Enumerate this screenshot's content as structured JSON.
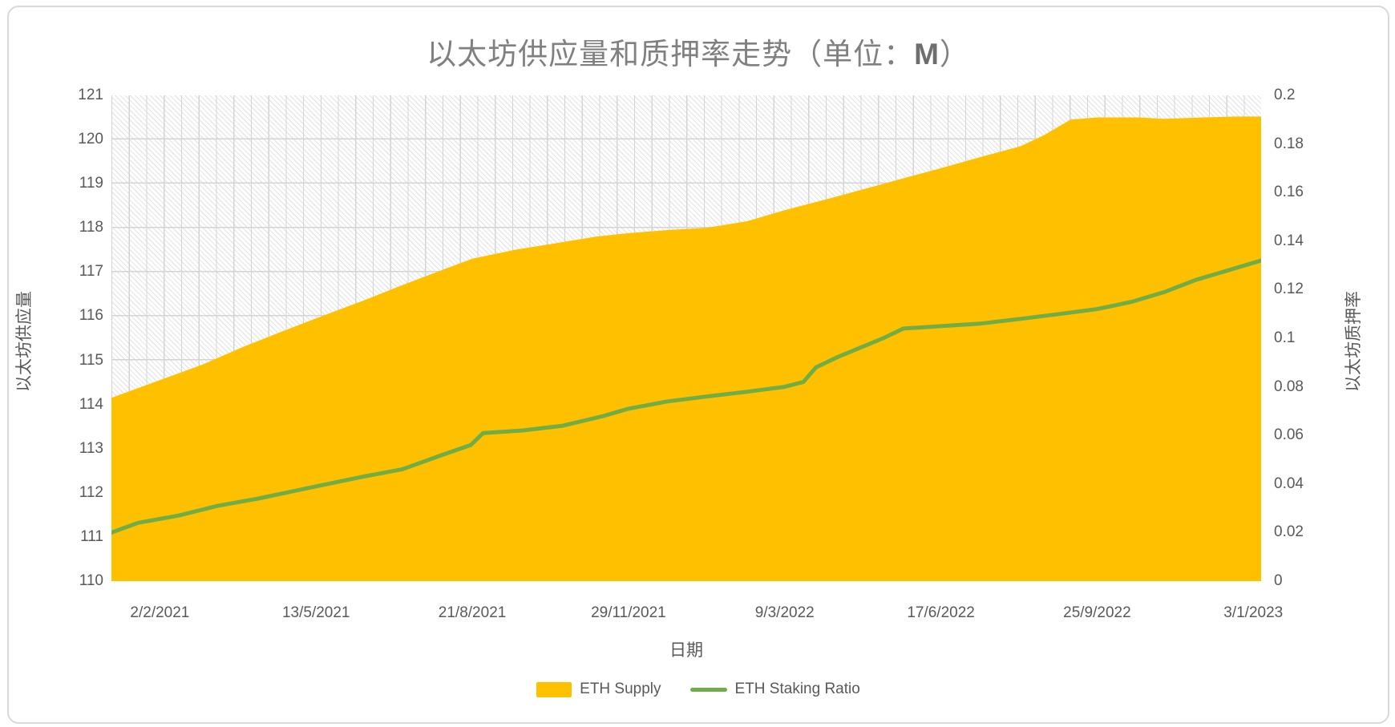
{
  "title": {
    "main": "以太坊供应量和质押率走势（单位：",
    "unit": "M",
    "suffix": "）"
  },
  "chart_data": {
    "type": "area+line combo",
    "title": "以太坊供应量和质押率走势（单位：M）",
    "plot_background": "light-gray diagonal hatch pattern with grid cells",
    "x_axis": {
      "title": "日期",
      "labels": [
        "2/2/2021",
        "13/5/2021",
        "21/8/2021",
        "29/11/2021",
        "9/3/2022",
        "17/6/2022",
        "25/9/2022",
        "3/1/2023"
      ],
      "label_day_offsets": [
        0,
        100,
        200,
        300,
        400,
        500,
        600,
        700
      ],
      "day_range": [
        -31,
        705
      ]
    },
    "y_left": {
      "title": "以太坊供应量",
      "min": 110,
      "max": 121,
      "tick_step": 1,
      "ticks": [
        "110",
        "111",
        "112",
        "113",
        "114",
        "115",
        "116",
        "117",
        "118",
        "119",
        "120",
        "121"
      ]
    },
    "y_right": {
      "title": "以太坊质押率",
      "min": 0,
      "max": 0.2,
      "tick_step": 0.02,
      "ticks": [
        "0",
        "0.02",
        "0.04",
        "0.06",
        "0.08",
        "0.1",
        "0.12",
        "0.14",
        "0.16",
        "0.18",
        "0.2"
      ]
    },
    "series": [
      {
        "name": "ETH Supply",
        "type": "area",
        "axis": "left",
        "color": "#FFC000",
        "points": [
          [
            -31,
            114.15
          ],
          [
            0,
            114.55
          ],
          [
            27,
            114.9
          ],
          [
            53,
            115.3
          ],
          [
            78,
            115.65
          ],
          [
            100,
            115.95
          ],
          [
            130,
            116.35
          ],
          [
            155,
            116.7
          ],
          [
            181,
            117.05
          ],
          [
            200,
            117.3
          ],
          [
            227,
            117.5
          ],
          [
            253,
            117.65
          ],
          [
            279,
            117.8
          ],
          [
            300,
            117.88
          ],
          [
            325,
            117.95
          ],
          [
            350,
            118.0
          ],
          [
            376,
            118.15
          ],
          [
            400,
            118.4
          ],
          [
            427,
            118.65
          ],
          [
            453,
            118.9
          ],
          [
            479,
            119.15
          ],
          [
            500,
            119.35
          ],
          [
            525,
            119.6
          ],
          [
            551,
            119.85
          ],
          [
            566,
            120.1
          ],
          [
            583,
            120.45
          ],
          [
            600,
            120.5
          ],
          [
            627,
            120.5
          ],
          [
            643,
            120.47
          ],
          [
            668,
            120.5
          ],
          [
            689,
            120.52
          ],
          [
            705,
            120.52
          ]
        ]
      },
      {
        "name": "ETH Staking Ratio",
        "type": "line",
        "axis": "right",
        "color": "#70AD47",
        "points": [
          [
            -31,
            0.02
          ],
          [
            -14,
            0.024
          ],
          [
            12,
            0.027
          ],
          [
            37,
            0.031
          ],
          [
            63,
            0.034
          ],
          [
            100,
            0.039
          ],
          [
            130,
            0.043
          ],
          [
            155,
            0.046
          ],
          [
            181,
            0.052
          ],
          [
            199,
            0.056
          ],
          [
            207,
            0.061
          ],
          [
            232,
            0.062
          ],
          [
            258,
            0.064
          ],
          [
            284,
            0.068
          ],
          [
            300,
            0.071
          ],
          [
            325,
            0.074
          ],
          [
            350,
            0.076
          ],
          [
            376,
            0.078
          ],
          [
            400,
            0.08
          ],
          [
            412,
            0.082
          ],
          [
            420,
            0.088
          ],
          [
            433,
            0.092
          ],
          [
            448,
            0.096
          ],
          [
            463,
            0.1
          ],
          [
            476,
            0.104
          ],
          [
            500,
            0.105
          ],
          [
            525,
            0.106
          ],
          [
            551,
            0.108
          ],
          [
            576,
            0.11
          ],
          [
            600,
            0.112
          ],
          [
            622,
            0.115
          ],
          [
            643,
            0.119
          ],
          [
            663,
            0.124
          ],
          [
            684,
            0.128
          ],
          [
            705,
            0.132
          ]
        ]
      }
    ],
    "legend": {
      "position": "bottom",
      "items": [
        {
          "label": "ETH Supply",
          "swatch": "area",
          "color": "#FFC000"
        },
        {
          "label": "ETH Staking Ratio",
          "swatch": "line",
          "color": "#70AD47"
        }
      ]
    }
  }
}
